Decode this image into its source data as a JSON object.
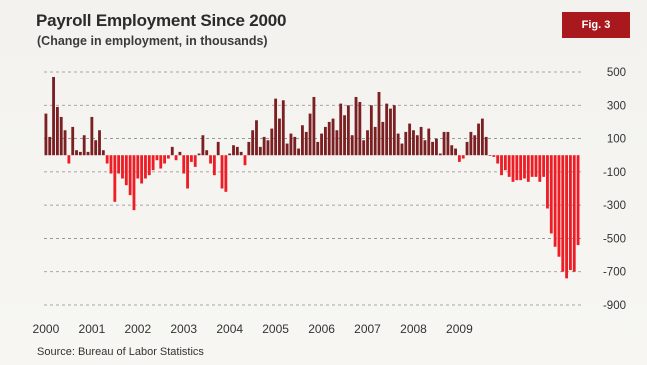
{
  "figure": {
    "title": "Payroll Employment Since 2000",
    "subtitle": "(Change in employment, in thousands)",
    "badge": "Fig. 3",
    "source": "Source: Bureau of Labor Statistics"
  },
  "colors": {
    "positive": "#7a1f22",
    "negative": "#ee1c25",
    "gridline": "#8c8c8c",
    "badge_bg": "#a8181d",
    "background": "#f5f4f0"
  },
  "chart_data": {
    "type": "bar",
    "title": "Payroll Employment Since 2000",
    "subtitle": "(Change in employment, in thousands)",
    "ylabel": "",
    "xlabel": "",
    "ylim": [
      -900,
      500
    ],
    "yticks": [
      "500",
      "300",
      "100",
      "-100",
      "-300",
      "-500",
      "-700",
      "-900"
    ],
    "ytick_values": [
      500,
      300,
      100,
      -100,
      -300,
      -500,
      -700,
      -900
    ],
    "xticks": [
      "2000",
      "2001",
      "2002",
      "2003",
      "2004",
      "2005",
      "2006",
      "2007",
      "2008",
      "2009"
    ],
    "grid": "horizontal dashed",
    "axis_position": "right",
    "series": [
      {
        "values": [
          250,
          110,
          470,
          290,
          230,
          150,
          -50,
          170,
          30,
          20,
          120,
          20,
          230,
          90,
          150,
          30,
          -50,
          -110,
          -280,
          -110,
          -140,
          -180,
          -240,
          -330,
          -140,
          -170,
          -140,
          -120,
          -90,
          -30,
          -80,
          -50,
          -20,
          50,
          -30,
          20,
          -110,
          -200,
          -40,
          -70,
          10,
          120,
          30,
          -50,
          -120,
          80,
          -200,
          -220,
          10,
          60,
          50,
          20,
          -60,
          80,
          150,
          210,
          50,
          110,
          90,
          160,
          340,
          220,
          330,
          70,
          130,
          110,
          40,
          180,
          140,
          250,
          350,
          80,
          130,
          170,
          200,
          220,
          150,
          310,
          240,
          300,
          120,
          350,
          320,
          90,
          150,
          300,
          170,
          380,
          200,
          310,
          280,
          300,
          130,
          70,
          140,
          190,
          150,
          120,
          170,
          90,
          160,
          80,
          100,
          10,
          140,
          140,
          60,
          40,
          -40,
          -20,
          80,
          140,
          120,
          190,
          220,
          110,
          0,
          -10,
          -50,
          -120
        ]
      },
      {
        "values": [
          -90,
          -130,
          -160,
          -150,
          -150,
          -140,
          -160,
          -130,
          -130,
          -160,
          -130,
          -320,
          -470,
          -550,
          -610,
          -700,
          -740,
          -690,
          -700,
          -540
        ]
      }
    ]
  }
}
